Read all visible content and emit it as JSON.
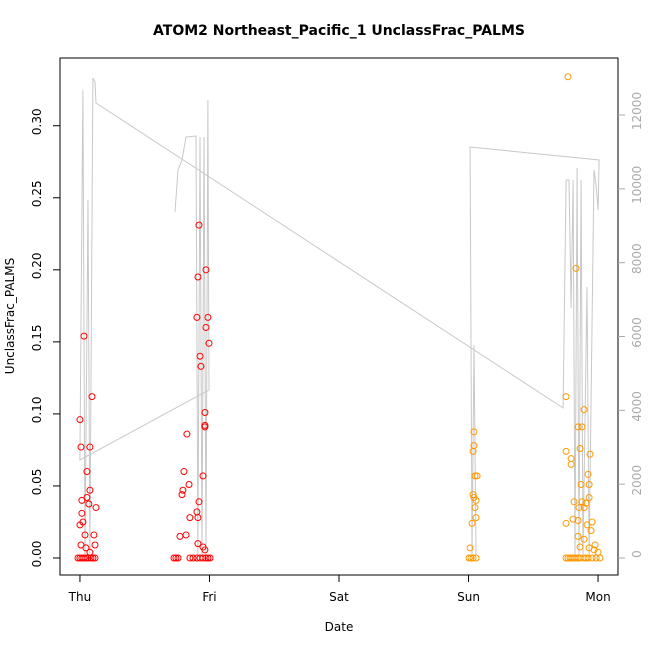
{
  "chart_data": {
    "type": "scatter",
    "title": "ATOM2 Northeast_Pacific_1 UnclassFrac_PALMS",
    "x_label": "Date",
    "y_label": "UnclassFrac_PALMS",
    "xlim": [
      -0.154,
      4.154
    ],
    "xticks": [
      {
        "value": 0,
        "label": "Thu"
      },
      {
        "value": 1,
        "label": "Fri"
      },
      {
        "value": 2,
        "label": "Sat"
      },
      {
        "value": 3,
        "label": "Sun"
      },
      {
        "value": 4,
        "label": "Mon"
      }
    ],
    "ylim": [
      -0.0118,
      0.347
    ],
    "yticks": [
      {
        "value": 0,
        "label": "0.00"
      },
      {
        "value": 0.05,
        "label": "0.05"
      },
      {
        "value": 0.1,
        "label": "0.10"
      },
      {
        "value": 0.15,
        "label": "0.15"
      },
      {
        "value": 0.2,
        "label": "0.20"
      },
      {
        "value": 0.25,
        "label": "0.25"
      },
      {
        "value": 0.3,
        "label": "0.30"
      }
    ],
    "y2lim": [
      -460,
      13544
    ],
    "y2ticks": [
      0,
      2000,
      4000,
      6000,
      8000,
      10000,
      12000
    ],
    "series": [
      {
        "type": "scatter",
        "color": "#ff0000",
        "x": [
          0,
          0.008,
          0.031,
          0.093,
          0.077,
          0.054,
          0.015,
          0.054,
          0.077,
          0.069,
          0.124,
          0,
          0.023,
          0.015,
          0.039,
          0.108,
          0.008,
          0.046,
          0.077,
          0.116,
          -0.015,
          0,
          0.015,
          0.031,
          0.046,
          0.062,
          0.085,
          0.1,
          0.116,
          0.919,
          0.911,
          0.973,
          0.903,
          0.988,
          0.973,
          0.996,
          0.927,
          0.934,
          0.965,
          0.965,
          0.965,
          0.826,
          0.803,
          0.842,
          0.795,
          0.788,
          0.95,
          0.919,
          0.903,
          0.911,
          0.849,
          0.772,
          0.819,
          0.911,
          0.95,
          0.965,
          0.726,
          0.741,
          0.757,
          0.849,
          0.873,
          0.903,
          0.927,
          0.95,
          0.973,
          0.988,
          1.004
        ],
        "values": [
          0.096,
          0.077,
          0.154,
          0.112,
          0.077,
          0.06,
          0.04,
          0.042,
          0.047,
          0.0375,
          0.035,
          0.023,
          0.025,
          0.031,
          0.016,
          0.016,
          0.009,
          0.007,
          0.004,
          0.009,
          0,
          0,
          0,
          0,
          0,
          0,
          0,
          0,
          0,
          0.231,
          0.195,
          0.2,
          0.167,
          0.167,
          0.16,
          0.149,
          0.14,
          0.133,
          0.101,
          0.092,
          0.091,
          0.086,
          0.06,
          0.051,
          0.047,
          0.044,
          0.057,
          0.039,
          0.032,
          0.028,
          0.028,
          0.015,
          0.016,
          0.01,
          0.0076,
          0.0056,
          0,
          0,
          0,
          0,
          0,
          0,
          0,
          0,
          0,
          0,
          0
        ]
      },
      {
        "type": "scatter",
        "color": "#ff9900",
        "x": [
          3.042,
          3.042,
          3.035,
          3.05,
          3.066,
          3.035,
          3.042,
          3.058,
          3.05,
          3.058,
          3.027,
          3.012,
          3.004,
          3.019,
          3.035,
          3.058,
          3.768,
          3.753,
          3.83,
          3.753,
          3.792,
          3.792,
          3.892,
          3.846,
          3.876,
          3.861,
          3.938,
          3.923,
          3.869,
          3.931,
          3.931,
          3.907,
          3.815,
          3.876,
          3.853,
          3.892,
          3.807,
          3.846,
          3.915,
          3.753,
          3.954,
          3.946,
          3.846,
          3.892,
          3.977,
          3.861,
          3.931,
          4.0,
          3.969,
          3.753,
          3.768,
          3.784,
          3.799,
          3.815,
          3.83,
          3.846,
          3.861,
          3.892,
          3.907,
          3.923,
          3.954,
          3.985,
          4.015
        ],
        "values": [
          0.0875,
          0.078,
          0.074,
          0.057,
          0.057,
          0.044,
          0.042,
          0.04,
          0.035,
          0.028,
          0.024,
          0.007,
          0,
          0,
          0,
          0,
          0.334,
          0.112,
          0.201,
          0.074,
          0.069,
          0.065,
          0.103,
          0.091,
          0.091,
          0.076,
          0.072,
          0.058,
          0.051,
          0.051,
          0.042,
          0.038,
          0.039,
          0.039,
          0.035,
          0.035,
          0.027,
          0.026,
          0.023,
          0.024,
          0.025,
          0.019,
          0.015,
          0.013,
          0.009,
          0.0076,
          0.007,
          0.004,
          0.0056,
          0,
          0,
          0,
          0,
          0,
          0,
          0,
          0,
          0,
          0,
          0,
          0,
          0,
          0
        ]
      },
      {
        "type": "line",
        "axis": "y2",
        "color": "#c8c8c8",
        "x": [
          0.734,
          0.757,
          0.788,
          0.819,
          0.896,
          0.911,
          0.927,
          0.942,
          0.958,
          0.973,
          0.988,
          0.996,
          0,
          0.023,
          0.039,
          0.062,
          0.077,
          0.1,
          0.116,
          0.124,
          3.73,
          3.753,
          3.776,
          3.792,
          3.807,
          3.822,
          3.838,
          3.853,
          3.869,
          3.884,
          3.915,
          3.931,
          3.969,
          3.985,
          4.0,
          4.008,
          3.012,
          3.027,
          3.042,
          3.058
        ],
        "values": [
          9373,
          10511,
          10782,
          11405,
          11432,
          81,
          11405,
          81,
          11405,
          81,
          12407,
          4551,
          2655,
          12678,
          81,
          9698,
          81,
          13003,
          12895,
          12326,
          4064,
          10240,
          10240,
          6773,
          10240,
          81,
          10565,
          81,
          10240,
          81,
          7341,
          81,
          10511,
          10105,
          9427,
          10782,
          11134,
          81,
          5770,
          81
        ]
      }
    ]
  }
}
